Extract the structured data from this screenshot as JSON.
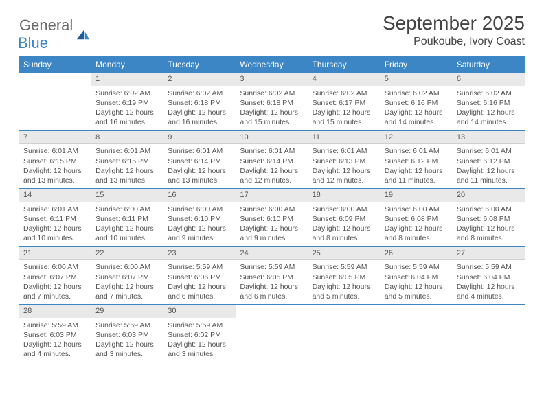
{
  "brand": {
    "general": "General",
    "blue": "Blue"
  },
  "title": "September 2025",
  "location": "Poukoube, Ivory Coast",
  "colors": {
    "header_bg": "#3d86c6",
    "header_text": "#ffffff",
    "daynum_bg": "#e9e9e9",
    "text": "#555555",
    "sep": "#3d86c6"
  },
  "weekdays": [
    "Sunday",
    "Monday",
    "Tuesday",
    "Wednesday",
    "Thursday",
    "Friday",
    "Saturday"
  ],
  "weeks": [
    [
      {
        "n": "",
        "sr": "",
        "ss": "",
        "dl": ""
      },
      {
        "n": "1",
        "sr": "Sunrise: 6:02 AM",
        "ss": "Sunset: 6:19 PM",
        "dl": "Daylight: 12 hours and 16 minutes."
      },
      {
        "n": "2",
        "sr": "Sunrise: 6:02 AM",
        "ss": "Sunset: 6:18 PM",
        "dl": "Daylight: 12 hours and 16 minutes."
      },
      {
        "n": "3",
        "sr": "Sunrise: 6:02 AM",
        "ss": "Sunset: 6:18 PM",
        "dl": "Daylight: 12 hours and 15 minutes."
      },
      {
        "n": "4",
        "sr": "Sunrise: 6:02 AM",
        "ss": "Sunset: 6:17 PM",
        "dl": "Daylight: 12 hours and 15 minutes."
      },
      {
        "n": "5",
        "sr": "Sunrise: 6:02 AM",
        "ss": "Sunset: 6:16 PM",
        "dl": "Daylight: 12 hours and 14 minutes."
      },
      {
        "n": "6",
        "sr": "Sunrise: 6:02 AM",
        "ss": "Sunset: 6:16 PM",
        "dl": "Daylight: 12 hours and 14 minutes."
      }
    ],
    [
      {
        "n": "7",
        "sr": "Sunrise: 6:01 AM",
        "ss": "Sunset: 6:15 PM",
        "dl": "Daylight: 12 hours and 13 minutes."
      },
      {
        "n": "8",
        "sr": "Sunrise: 6:01 AM",
        "ss": "Sunset: 6:15 PM",
        "dl": "Daylight: 12 hours and 13 minutes."
      },
      {
        "n": "9",
        "sr": "Sunrise: 6:01 AM",
        "ss": "Sunset: 6:14 PM",
        "dl": "Daylight: 12 hours and 13 minutes."
      },
      {
        "n": "10",
        "sr": "Sunrise: 6:01 AM",
        "ss": "Sunset: 6:14 PM",
        "dl": "Daylight: 12 hours and 12 minutes."
      },
      {
        "n": "11",
        "sr": "Sunrise: 6:01 AM",
        "ss": "Sunset: 6:13 PM",
        "dl": "Daylight: 12 hours and 12 minutes."
      },
      {
        "n": "12",
        "sr": "Sunrise: 6:01 AM",
        "ss": "Sunset: 6:12 PM",
        "dl": "Daylight: 12 hours and 11 minutes."
      },
      {
        "n": "13",
        "sr": "Sunrise: 6:01 AM",
        "ss": "Sunset: 6:12 PM",
        "dl": "Daylight: 12 hours and 11 minutes."
      }
    ],
    [
      {
        "n": "14",
        "sr": "Sunrise: 6:01 AM",
        "ss": "Sunset: 6:11 PM",
        "dl": "Daylight: 12 hours and 10 minutes."
      },
      {
        "n": "15",
        "sr": "Sunrise: 6:00 AM",
        "ss": "Sunset: 6:11 PM",
        "dl": "Daylight: 12 hours and 10 minutes."
      },
      {
        "n": "16",
        "sr": "Sunrise: 6:00 AM",
        "ss": "Sunset: 6:10 PM",
        "dl": "Daylight: 12 hours and 9 minutes."
      },
      {
        "n": "17",
        "sr": "Sunrise: 6:00 AM",
        "ss": "Sunset: 6:10 PM",
        "dl": "Daylight: 12 hours and 9 minutes."
      },
      {
        "n": "18",
        "sr": "Sunrise: 6:00 AM",
        "ss": "Sunset: 6:09 PM",
        "dl": "Daylight: 12 hours and 8 minutes."
      },
      {
        "n": "19",
        "sr": "Sunrise: 6:00 AM",
        "ss": "Sunset: 6:08 PM",
        "dl": "Daylight: 12 hours and 8 minutes."
      },
      {
        "n": "20",
        "sr": "Sunrise: 6:00 AM",
        "ss": "Sunset: 6:08 PM",
        "dl": "Daylight: 12 hours and 8 minutes."
      }
    ],
    [
      {
        "n": "21",
        "sr": "Sunrise: 6:00 AM",
        "ss": "Sunset: 6:07 PM",
        "dl": "Daylight: 12 hours and 7 minutes."
      },
      {
        "n": "22",
        "sr": "Sunrise: 6:00 AM",
        "ss": "Sunset: 6:07 PM",
        "dl": "Daylight: 12 hours and 7 minutes."
      },
      {
        "n": "23",
        "sr": "Sunrise: 5:59 AM",
        "ss": "Sunset: 6:06 PM",
        "dl": "Daylight: 12 hours and 6 minutes."
      },
      {
        "n": "24",
        "sr": "Sunrise: 5:59 AM",
        "ss": "Sunset: 6:05 PM",
        "dl": "Daylight: 12 hours and 6 minutes."
      },
      {
        "n": "25",
        "sr": "Sunrise: 5:59 AM",
        "ss": "Sunset: 6:05 PM",
        "dl": "Daylight: 12 hours and 5 minutes."
      },
      {
        "n": "26",
        "sr": "Sunrise: 5:59 AM",
        "ss": "Sunset: 6:04 PM",
        "dl": "Daylight: 12 hours and 5 minutes."
      },
      {
        "n": "27",
        "sr": "Sunrise: 5:59 AM",
        "ss": "Sunset: 6:04 PM",
        "dl": "Daylight: 12 hours and 4 minutes."
      }
    ],
    [
      {
        "n": "28",
        "sr": "Sunrise: 5:59 AM",
        "ss": "Sunset: 6:03 PM",
        "dl": "Daylight: 12 hours and 4 minutes."
      },
      {
        "n": "29",
        "sr": "Sunrise: 5:59 AM",
        "ss": "Sunset: 6:03 PM",
        "dl": "Daylight: 12 hours and 3 minutes."
      },
      {
        "n": "30",
        "sr": "Sunrise: 5:59 AM",
        "ss": "Sunset: 6:02 PM",
        "dl": "Daylight: 12 hours and 3 minutes."
      },
      {
        "n": "",
        "sr": "",
        "ss": "",
        "dl": ""
      },
      {
        "n": "",
        "sr": "",
        "ss": "",
        "dl": ""
      },
      {
        "n": "",
        "sr": "",
        "ss": "",
        "dl": ""
      },
      {
        "n": "",
        "sr": "",
        "ss": "",
        "dl": ""
      }
    ]
  ]
}
